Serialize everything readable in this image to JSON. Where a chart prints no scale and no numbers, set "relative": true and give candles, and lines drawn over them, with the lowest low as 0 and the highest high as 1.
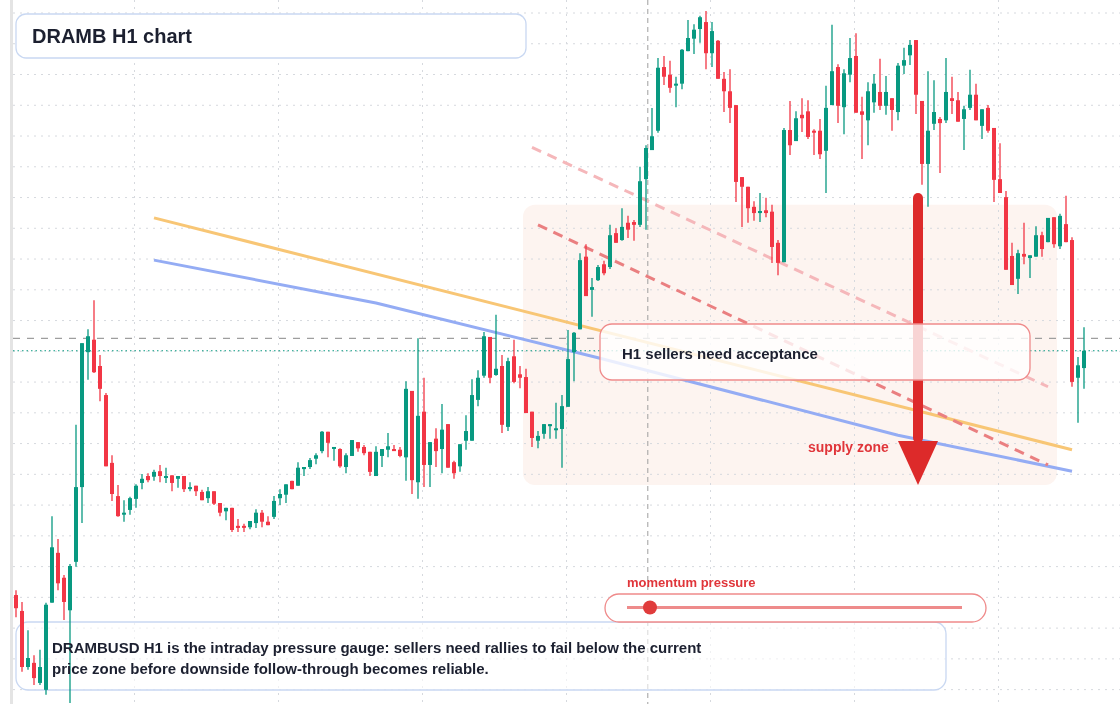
{
  "chart_data": {
    "type": "candlestick",
    "title": "DRAMB H1 chart",
    "annotations": [
      "H1 sellers need acceptance",
      "momentum pressure",
      "DRAMBUSD H1 is the intraday pressure gauge: sellers need rallies to fail below the current price zone before downside follow-through becomes reliable."
    ],
    "relative": true,
    "grid": true,
    "categories": [
      null,
      null,
      null,
      null,
      null,
      null,
      null,
      null,
      null,
      null,
      null,
      null,
      null,
      null,
      null,
      null,
      null,
      null,
      null,
      null,
      null,
      null,
      null,
      null,
      null,
      null,
      null,
      null,
      null,
      null,
      null,
      null,
      null,
      null,
      null,
      null,
      null,
      null,
      null,
      null,
      null,
      null,
      null,
      null,
      null,
      null,
      null,
      null,
      null,
      null,
      null,
      null,
      null,
      null,
      null,
      null,
      null,
      null,
      null,
      null,
      null,
      null,
      null,
      null,
      null,
      null,
      null,
      null,
      null,
      null,
      null,
      null,
      null,
      null,
      null,
      null,
      null,
      null,
      null,
      null,
      null,
      null,
      null,
      null,
      null,
      null,
      null,
      null,
      null,
      null,
      null,
      null,
      null,
      null,
      null,
      null,
      null,
      null,
      null,
      null,
      null,
      null,
      null,
      null,
      null,
      null,
      null,
      null,
      null,
      null,
      null,
      null,
      null,
      null,
      null,
      null,
      null,
      null,
      null,
      null,
      null,
      null,
      null,
      null,
      null,
      null,
      null,
      null,
      null,
      null,
      null,
      null,
      null,
      null,
      null,
      null,
      null,
      null,
      null,
      null,
      null,
      null,
      null,
      null,
      null,
      null,
      null,
      null,
      null,
      null,
      null,
      null,
      null,
      null,
      null,
      null,
      null,
      null,
      null,
      null,
      null,
      null,
      null,
      null,
      null,
      null,
      null,
      null,
      null,
      null,
      null,
      null,
      null,
      null,
      null,
      null,
      null,
      null,
      null
    ],
    "ohlc": [
      [
        0.156,
        0.163,
        0.124,
        0.137
      ],
      [
        0.133,
        0.146,
        0.045,
        0.052
      ],
      [
        0.052,
        0.105,
        0.048,
        0.065
      ],
      [
        0.058,
        0.069,
        0.026,
        0.036
      ],
      [
        0.029,
        0.077,
        0.026,
        0.052
      ],
      [
        0.019,
        0.145,
        0.012,
        0.142
      ],
      [
        0.145,
        0.27,
        0.145,
        0.225
      ],
      [
        0.217,
        0.237,
        0.163,
        0.173
      ],
      [
        0.181,
        0.185,
        0.12,
        0.146
      ],
      [
        0.134,
        0.201,
        0,
        0.198
      ],
      [
        0.204,
        0.402,
        0.197,
        0.312
      ],
      [
        0.312,
        0.52,
        0.26,
        0.52
      ],
      [
        0.507,
        0.54,
        0.467,
        0.53
      ],
      [
        0.525,
        0.582,
        0.477,
        0.478
      ],
      [
        0.487,
        0.503,
        0.436,
        0.454
      ],
      [
        0.445,
        0.448,
        0.342,
        0.342
      ],
      [
        0.347,
        0.358,
        0.292,
        0.302
      ],
      [
        0.299,
        0.315,
        0.269,
        0.27
      ],
      [
        0.273,
        0.293,
        0.262,
        0.275
      ],
      [
        0.279,
        0.298,
        0.272,
        0.296
      ],
      [
        0.295,
        0.316,
        0.282,
        0.314
      ],
      [
        0.318,
        0.331,
        0.309,
        0.324
      ],
      [
        0.328,
        0.332,
        0.319,
        0.322
      ],
      [
        0.327,
        0.337,
        0.321,
        0.334
      ],
      [
        0.335,
        0.344,
        0.319,
        0.328
      ],
      [
        0.327,
        0.34,
        0.318,
        0.328
      ],
      [
        0.329,
        0.329,
        0.306,
        0.318
      ],
      [
        0.324,
        0.328,
        0.311,
        0.328
      ],
      [
        0.328,
        0.328,
        0.305,
        0.309
      ],
      [
        0.311,
        0.319,
        0.306,
        0.312
      ],
      [
        0.314,
        0.314,
        0.299,
        0.306
      ],
      [
        0.305,
        0.308,
        0.293,
        0.293
      ],
      [
        0.296,
        0.312,
        0.289,
        0.306
      ],
      [
        0.306,
        0.306,
        0.286,
        0.288
      ],
      [
        0.289,
        0.289,
        0.27,
        0.275
      ],
      [
        0.277,
        0.282,
        0.264,
        0.282
      ],
      [
        0.282,
        0.282,
        0.247,
        0.25
      ],
      [
        0.256,
        0.266,
        0.247,
        0.253
      ],
      [
        0.256,
        0.259,
        0.247,
        0.254
      ],
      [
        0.254,
        0.263,
        0.251,
        0.263
      ],
      [
        0.26,
        0.28,
        0.253,
        0.275
      ],
      [
        0.275,
        0.279,
        0.254,
        0.262
      ],
      [
        0.262,
        0.27,
        0.257,
        0.257
      ],
      [
        0.269,
        0.299,
        0.266,
        0.292
      ],
      [
        0.296,
        0.309,
        0.286,
        0.302
      ],
      [
        0.301,
        0.316,
        0.289,
        0.316
      ],
      [
        0.321,
        0.321,
        0.309,
        0.309
      ],
      [
        0.314,
        0.348,
        0.314,
        0.34
      ],
      [
        0.338,
        0.341,
        0.328,
        0.341
      ],
      [
        0.341,
        0.354,
        0.338,
        0.351
      ],
      [
        0.353,
        0.361,
        0.345,
        0.358
      ],
      [
        0.364,
        0.393,
        0.361,
        0.392
      ],
      [
        0.392,
        0.392,
        0.355,
        0.376
      ],
      [
        0.368,
        0.37,
        0.35,
        0.37
      ],
      [
        0.367,
        0.368,
        0.34,
        0.342
      ],
      [
        0.341,
        0.361,
        0.332,
        0.358
      ],
      [
        0.357,
        0.38,
        0.357,
        0.38
      ],
      [
        0.377,
        0.377,
        0.363,
        0.368
      ],
      [
        0.37,
        0.373,
        0.358,
        0.361
      ],
      [
        0.363,
        0.363,
        0.328,
        0.334
      ],
      [
        0.328,
        0.371,
        0.328,
        0.363
      ],
      [
        0.357,
        0.367,
        0.341,
        0.367
      ],
      [
        0.366,
        0.39,
        0.355,
        0.371
      ],
      [
        0.367,
        0.373,
        0.364,
        0.364
      ],
      [
        0.366,
        0.37,
        0.355,
        0.357
      ],
      [
        0.355,
        0.465,
        0.321,
        0.454
      ],
      [
        0.451,
        0.451,
        0.302,
        0.322
      ],
      [
        0.319,
        0.527,
        0.295,
        0.415
      ],
      [
        0.421,
        0.47,
        0.312,
        0.344
      ],
      [
        0.344,
        0.377,
        0.312,
        0.377
      ],
      [
        0.382,
        0.397,
        0.341,
        0.364
      ],
      [
        0.367,
        0.432,
        0.332,
        0.395
      ],
      [
        0.403,
        0.403,
        0.34,
        0.34
      ],
      [
        0.348,
        0.35,
        0.324,
        0.332
      ],
      [
        0.342,
        0.374,
        0.334,
        0.374
      ],
      [
        0.379,
        0.416,
        0.366,
        0.393
      ],
      [
        0.379,
        0.468,
        0.379,
        0.445
      ],
      [
        0.438,
        0.481,
        0.429,
        0.47
      ],
      [
        0.473,
        0.536,
        0.47,
        0.53
      ],
      [
        0.529,
        0.529,
        0.462,
        0.47
      ],
      [
        0.474,
        0.561,
        0.473,
        0.483
      ],
      [
        0.487,
        0.503,
        0.39,
        0.402
      ],
      [
        0.399,
        0.499,
        0.393,
        0.494
      ],
      [
        0.501,
        0.525,
        0.462,
        0.464
      ],
      [
        0.475,
        0.487,
        0.455,
        0.47
      ],
      [
        0.471,
        0.483,
        0.419,
        0.419
      ],
      [
        0.421,
        0.421,
        0.37,
        0.383
      ],
      [
        0.379,
        0.393,
        0.368,
        0.386
      ],
      [
        0.389,
        0.403,
        0.382,
        0.403
      ],
      [
        0.4,
        0.403,
        0.382,
        0.403
      ],
      [
        0.395,
        0.434,
        0.382,
        0.397
      ],
      [
        0.396,
        0.445,
        0.34,
        0.429
      ],
      [
        0.428,
        0.539,
        0.428,
        0.497
      ],
      [
        0.507,
        0.536,
        0.465,
        0.535
      ],
      [
        0.54,
        0.65,
        0.54,
        0.64
      ],
      [
        0.645,
        0.663,
        0.588,
        0.588
      ],
      [
        0.597,
        0.614,
        0.558,
        0.601
      ],
      [
        0.611,
        0.633,
        0.61,
        0.63
      ],
      [
        0.634,
        0.639,
        0.618,
        0.621
      ],
      [
        0.63,
        0.691,
        0.627,
        0.676
      ],
      [
        0.679,
        0.686,
        0.665,
        0.665
      ],
      [
        0.669,
        0.715,
        0.668,
        0.688
      ],
      [
        0.694,
        0.704,
        0.672,
        0.684
      ],
      [
        0.695,
        0.698,
        0.668,
        0.691
      ],
      [
        0.691,
        0.775,
        0.688,
        0.754
      ],
      [
        0.757,
        0.806,
        0.684,
        0.802
      ],
      [
        0.799,
        0.86,
        0.799,
        0.819
      ],
      [
        0.827,
        0.932,
        0.824,
        0.918
      ],
      [
        0.919,
        0.935,
        0.893,
        0.905
      ],
      [
        0.908,
        0.928,
        0.882,
        0.889
      ],
      [
        0.893,
        0.905,
        0.861,
        0.895
      ],
      [
        0.895,
        0.945,
        0.887,
        0.944
      ],
      [
        0.942,
        0.987,
        0.942,
        0.961
      ],
      [
        0.96,
        0.981,
        0.938,
        0.973
      ],
      [
        0.974,
        0.993,
        0.954,
        0.991
      ],
      [
        0.984,
        1,
        0.916,
        0.939
      ],
      [
        0.939,
        0.984,
        0.919,
        0.971
      ],
      [
        0.957,
        0.958,
        0.902,
        0.902
      ],
      [
        0.902,
        0.912,
        0.854,
        0.884
      ],
      [
        0.884,
        0.916,
        0.838,
        0.86
      ],
      [
        0.864,
        0.864,
        0.724,
        0.753
      ],
      [
        0.76,
        0.76,
        0.688,
        0.746
      ],
      [
        0.746,
        0.746,
        0.694,
        0.715
      ],
      [
        0.717,
        0.725,
        0.697,
        0.708
      ],
      [
        0.708,
        0.737,
        0.695,
        0.711
      ],
      [
        0.712,
        0.73,
        0.702,
        0.708
      ],
      [
        0.71,
        0.72,
        0.636,
        0.659
      ],
      [
        0.665,
        0.669,
        0.618,
        0.636
      ],
      [
        0.637,
        0.831,
        0.637,
        0.828
      ],
      [
        0.828,
        0.87,
        0.792,
        0.806
      ],
      [
        0.812,
        0.855,
        0.812,
        0.845
      ],
      [
        0.85,
        0.874,
        0.825,
        0.845
      ],
      [
        0.855,
        0.871,
        0.815,
        0.818
      ],
      [
        0.827,
        0.829,
        0.792,
        0.825
      ],
      [
        0.827,
        0.844,
        0.786,
        0.793
      ],
      [
        0.798,
        0.892,
        0.737,
        0.86
      ],
      [
        0.864,
        0.98,
        0.864,
        0.913
      ],
      [
        0.919,
        0.923,
        0.838,
        0.863
      ],
      [
        0.861,
        0.916,
        0.822,
        0.91
      ],
      [
        0.908,
        0.961,
        0.897,
        0.932
      ],
      [
        0.935,
        0.968,
        0.853,
        0.853
      ],
      [
        0.855,
        0.876,
        0.786,
        0.85
      ],
      [
        0.842,
        0.897,
        0.806,
        0.884
      ],
      [
        0.868,
        0.909,
        0.853,
        0.895
      ],
      [
        0.883,
        0.931,
        0.857,
        0.863
      ],
      [
        0.863,
        0.906,
        0.85,
        0.883
      ],
      [
        0.874,
        0.874,
        0.827,
        0.857
      ],
      [
        0.854,
        0.925,
        0.842,
        0.921
      ],
      [
        0.921,
        0.947,
        0.909,
        0.929
      ],
      [
        0.936,
        0.958,
        0.922,
        0.951
      ],
      [
        0.958,
        0.958,
        0.851,
        0.879
      ],
      [
        0.87,
        0.87,
        0.749,
        0.779
      ],
      [
        0.779,
        0.913,
        0.717,
        0.827
      ],
      [
        0.837,
        0.9,
        0.828,
        0.854
      ],
      [
        0.844,
        0.847,
        0.766,
        0.838
      ],
      [
        0.842,
        0.932,
        0.838,
        0.883
      ],
      [
        0.874,
        0.905,
        0.851,
        0.87
      ],
      [
        0.871,
        0.883,
        0.84,
        0.84
      ],
      [
        0.844,
        0.863,
        0.799,
        0.858
      ],
      [
        0.86,
        0.915,
        0.857,
        0.879
      ],
      [
        0.879,
        0.895,
        0.842,
        0.842
      ],
      [
        0.834,
        0.858,
        0.815,
        0.858
      ],
      [
        0.86,
        0.864,
        0.824,
        0.827
      ],
      [
        0.831,
        0.831,
        0.724,
        0.756
      ],
      [
        0.757,
        0.809,
        0.737,
        0.737
      ],
      [
        0.731,
        0.74,
        0.626,
        0.626
      ],
      [
        0.646,
        0.665,
        0.604,
        0.604
      ],
      [
        0.613,
        0.655,
        0.591,
        0.65
      ],
      [
        0.649,
        0.694,
        0.634,
        0.645
      ],
      [
        0.643,
        0.647,
        0.614,
        0.647
      ],
      [
        0.645,
        0.689,
        0.645,
        0.676
      ],
      [
        0.676,
        0.681,
        0.645,
        0.656
      ],
      [
        0.666,
        0.701,
        0.666,
        0.701
      ],
      [
        0.702,
        0.702,
        0.658,
        0.663
      ],
      [
        0.66,
        0.707,
        0.656,
        0.704
      ],
      [
        0.692,
        0.733,
        0.666,
        0.666
      ],
      [
        0.669,
        0.673,
        0.457,
        0.464
      ],
      [
        0.47,
        0.5,
        0.405,
        0.488
      ],
      [
        0.484,
        0.543,
        0.454,
        0.509
      ]
    ],
    "series": [
      {
        "type": "line",
        "color": "#f8c675",
        "line_style": "solid",
        "values": [
          null,
          null,
          null,
          null,
          null,
          null,
          null,
          null,
          null,
          null,
          null,
          null,
          null,
          null,
          null,
          null,
          null,
          null,
          null,
          null,
          null,
          null,
          null,
          0.701,
          null,
          null,
          null,
          null,
          null,
          null,
          null,
          null,
          null,
          null,
          null,
          null,
          null,
          null,
          null,
          null,
          null,
          null,
          null,
          null,
          null,
          null,
          null,
          null,
          null,
          null,
          null,
          null,
          null,
          null,
          null,
          null,
          null,
          null,
          null,
          null,
          null,
          null,
          null,
          null,
          null,
          null,
          null,
          null,
          null,
          null,
          null,
          null,
          null,
          null,
          null,
          null,
          null,
          null,
          null,
          null,
          null,
          null,
          null,
          null,
          null,
          null,
          null,
          null,
          null,
          null,
          null,
          null,
          null,
          null,
          null,
          null,
          null,
          null,
          null,
          null,
          null,
          null,
          null,
          null,
          null,
          null,
          null,
          null,
          null,
          null,
          null,
          null,
          null,
          null,
          null,
          null,
          null,
          null,
          null,
          null,
          null,
          null,
          null,
          null,
          null,
          null,
          null,
          null,
          null,
          null,
          null,
          null,
          null,
          null,
          null,
          null,
          null,
          null,
          null,
          null,
          null,
          null,
          null,
          null,
          null,
          null,
          null,
          null,
          null,
          null,
          null,
          null,
          null,
          null,
          null,
          null,
          null,
          null,
          null,
          null,
          null,
          null,
          null,
          null,
          null,
          null,
          null,
          null,
          null,
          null,
          null,
          null,
          null,
          null,
          null,
          null,
          0.366,
          null,
          null
        ]
      },
      {
        "type": "line",
        "color": "#94acf4",
        "line_style": "solid",
        "values": [
          null,
          null,
          null,
          null,
          null,
          null,
          null,
          null,
          null,
          null,
          null,
          null,
          null,
          null,
          null,
          null,
          null,
          null,
          null,
          null,
          null,
          null,
          null,
          0.64,
          null,
          null,
          null,
          null,
          null,
          null,
          null,
          null,
          null,
          null,
          null,
          null,
          null,
          null,
          null,
          null,
          null,
          null,
          null,
          null,
          null,
          null,
          null,
          null,
          null,
          null,
          null,
          null,
          null,
          null,
          null,
          null,
          null,
          null,
          null,
          null,
          0.578,
          null,
          null,
          null,
          null,
          null,
          null,
          null,
          null,
          null,
          null,
          null,
          null,
          null,
          null,
          null,
          null,
          null,
          null,
          null,
          null,
          null,
          null,
          null,
          null,
          null,
          null,
          null,
          null,
          null,
          null,
          null,
          null,
          null,
          null,
          null,
          null,
          0.499,
          null,
          null,
          null,
          null,
          null,
          null,
          null,
          null,
          null,
          null,
          null,
          null,
          null,
          null,
          null,
          null,
          null,
          null,
          null,
          null,
          null,
          null,
          null,
          null,
          null,
          null,
          null,
          null,
          null,
          null,
          null,
          null,
          null,
          null,
          null,
          null,
          null,
          null,
          null,
          null,
          null,
          null,
          null,
          null,
          null,
          null,
          null,
          null,
          null,
          0.387,
          null,
          null,
          null,
          null,
          null,
          null,
          null,
          null,
          null,
          null,
          null,
          null,
          null,
          null,
          null,
          null,
          null,
          null,
          null,
          null,
          null,
          null,
          null,
          null,
          null,
          null,
          null,
          null,
          0.335,
          null,
          null
        ]
      },
      {
        "type": "line",
        "color": "#f5b7ba",
        "line_style": "dashed",
        "values": [
          null,
          null,
          null,
          null,
          null,
          null,
          null,
          null,
          null,
          null,
          null,
          null,
          null,
          null,
          null,
          null,
          null,
          null,
          null,
          null,
          null,
          null,
          null,
          null,
          null,
          null,
          null,
          null,
          null,
          null,
          null,
          null,
          null,
          null,
          null,
          null,
          null,
          null,
          null,
          null,
          null,
          null,
          null,
          null,
          null,
          null,
          null,
          null,
          null,
          null,
          null,
          null,
          null,
          null,
          null,
          null,
          null,
          null,
          null,
          null,
          null,
          null,
          null,
          null,
          null,
          null,
          null,
          null,
          null,
          null,
          null,
          null,
          null,
          null,
          null,
          null,
          null,
          null,
          null,
          null,
          null,
          null,
          null,
          null,
          null,
          null,
          0.803,
          null,
          null,
          null,
          null,
          null,
          null,
          null,
          null,
          null,
          null,
          null,
          null,
          null,
          null,
          null,
          null,
          null,
          null,
          null,
          null,
          null,
          null,
          null,
          null,
          null,
          null,
          null,
          null,
          null,
          null,
          null,
          null,
          null,
          null,
          null,
          null,
          null,
          null,
          null,
          null,
          null,
          null,
          null,
          null,
          null,
          null,
          null,
          null,
          null,
          null,
          null,
          null,
          null,
          null,
          null,
          null,
          null,
          null,
          null,
          null,
          null,
          null,
          null,
          null,
          null,
          null,
          null,
          null,
          null,
          null,
          null,
          null,
          null,
          null,
          null,
          null,
          null,
          null,
          null,
          null,
          null,
          null,
          null,
          null,
          null,
          0.457,
          null,
          null,
          null,
          null,
          null,
          null
        ]
      },
      {
        "type": "line",
        "color": "#ea7f80",
        "line_style": "dashed",
        "values": [
          null,
          null,
          null,
          null,
          null,
          null,
          null,
          null,
          null,
          null,
          null,
          null,
          null,
          null,
          null,
          null,
          null,
          null,
          null,
          null,
          null,
          null,
          null,
          null,
          null,
          null,
          null,
          null,
          null,
          null,
          null,
          null,
          null,
          null,
          null,
          null,
          null,
          null,
          null,
          null,
          null,
          null,
          null,
          null,
          null,
          null,
          null,
          null,
          null,
          null,
          null,
          null,
          null,
          null,
          null,
          null,
          null,
          null,
          null,
          null,
          null,
          null,
          null,
          null,
          null,
          null,
          null,
          null,
          null,
          null,
          null,
          null,
          null,
          null,
          null,
          null,
          null,
          null,
          null,
          null,
          null,
          null,
          null,
          null,
          null,
          null,
          null,
          0.691,
          null,
          null,
          null,
          null,
          null,
          null,
          null,
          null,
          null,
          null,
          null,
          null,
          null,
          null,
          null,
          null,
          null,
          null,
          null,
          null,
          null,
          null,
          null,
          null,
          null,
          null,
          null,
          null,
          null,
          null,
          null,
          null,
          null,
          null,
          null,
          null,
          null,
          null,
          null,
          null,
          null,
          null,
          null,
          null,
          null,
          null,
          null,
          null,
          null,
          null,
          null,
          null,
          null,
          null,
          null,
          null,
          null,
          null,
          null,
          null,
          null,
          null,
          null,
          null,
          null,
          null,
          null,
          null,
          null,
          null,
          null,
          null,
          null,
          null,
          null,
          null,
          null,
          null,
          null,
          null,
          null,
          null,
          null,
          null,
          0.344,
          null,
          null,
          null,
          null,
          null,
          null
        ]
      }
    ],
    "ref_lines": [
      {
        "axis": "y",
        "value": 0.527,
        "color": "#9e9e9e",
        "line_style": "dashed"
      },
      {
        "axis": "y",
        "value": 0.509,
        "color": "#089981",
        "line_style": "dotted"
      }
    ],
    "bands": [
      {
        "axis": "y",
        "from": 0.315,
        "to": 0.72,
        "label": "supply zone",
        "color": "#fdf4f0"
      }
    ]
  }
}
